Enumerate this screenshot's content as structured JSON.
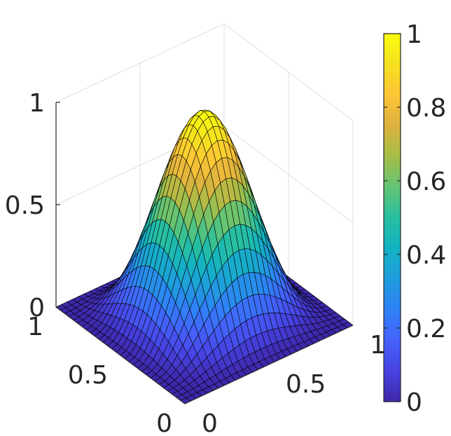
{
  "chart_data": {
    "type": "surface",
    "function": "sin(pi*x)^2 * sin(pi*y)^2",
    "x": {
      "range": [
        0,
        1
      ],
      "ticks": [
        0,
        0.5,
        1
      ],
      "tick_labels": [
        "0",
        "0.5",
        "1"
      ],
      "label": ""
    },
    "y": {
      "range": [
        0,
        1
      ],
      "ticks": [
        0,
        0.5,
        1
      ],
      "tick_labels": [
        "0",
        "0.5",
        "1"
      ],
      "label": ""
    },
    "z": {
      "range": [
        0,
        1
      ],
      "ticks": [
        0,
        0.5,
        1
      ],
      "tick_labels": [
        "0",
        "0.5",
        "1"
      ],
      "label": ""
    },
    "grid_resolution": 31,
    "peak": {
      "x": 0.5,
      "y": 0.5,
      "z": 1
    },
    "grid": true,
    "colormap": "parula",
    "colorbar": {
      "range": [
        0,
        1
      ],
      "ticks": [
        0,
        0.2,
        0.4,
        0.6,
        0.8,
        1
      ],
      "tick_labels": [
        "0",
        "0.2",
        "0.4",
        "0.6",
        "0.8",
        "1"
      ],
      "colors": [
        "#3e26a8",
        "#4743e2",
        "#4562fb",
        "#2f81f7",
        "#209ddd",
        "#13b2c3",
        "#28bfa0",
        "#63c474",
        "#a5be47",
        "#ddb13f",
        "#fec436",
        "#f5e11f",
        "#f9fb0e"
      ]
    },
    "title": "",
    "edge_color": "#000000",
    "axis_color": "#262626",
    "gridline_color": "#e0e0e0"
  }
}
